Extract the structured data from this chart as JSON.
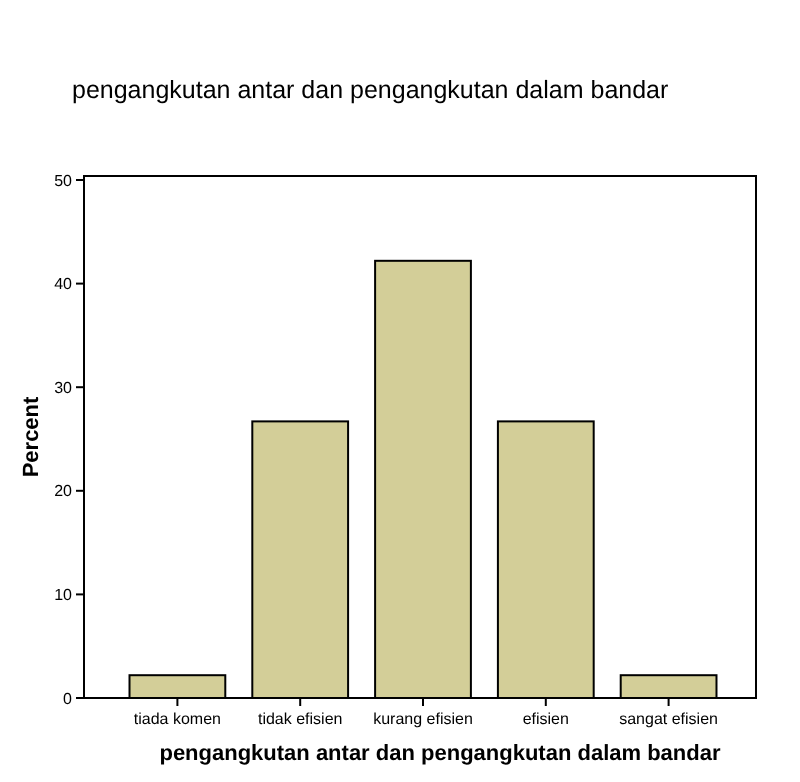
{
  "chart_data": {
    "type": "bar",
    "title": "pengangkutan antar dan pengangkutan dalam bandar",
    "xlabel": "pengangkutan antar dan pengangkutan dalam bandar",
    "ylabel": "Percent",
    "categories": [
      "tiada komen",
      "tidak efisien",
      "kurang efisien",
      "efisien",
      "sangat efisien"
    ],
    "values": [
      2.2,
      26.7,
      42.2,
      26.7,
      2.2
    ],
    "color": "#d3ce98",
    "ylim": [
      0,
      50
    ],
    "yticks": [
      0,
      10,
      20,
      30,
      40,
      50
    ],
    "grid": false
  }
}
